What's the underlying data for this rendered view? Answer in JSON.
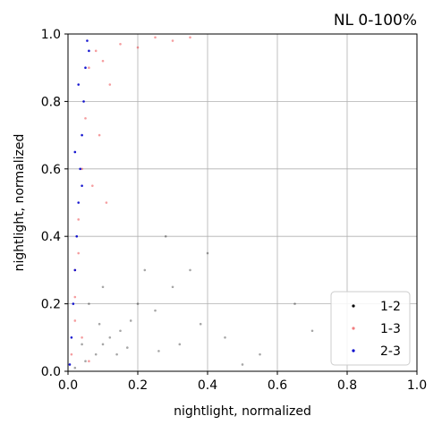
{
  "chart_data": {
    "type": "scatter",
    "title": "NL 0-100%",
    "xlabel": "nightlight, normalized",
    "ylabel": "nightlight, normalized",
    "xlim": [
      0.0,
      1.0
    ],
    "ylim": [
      0.0,
      1.0
    ],
    "xticks": [
      "0.0",
      "0.2",
      "0.4",
      "0.6",
      "0.8",
      "1.0"
    ],
    "yticks": [
      "0.0",
      "0.2",
      "0.4",
      "0.6",
      "0.8",
      "1.0"
    ],
    "grid": true,
    "legend_position": "bottom-right",
    "series": [
      {
        "name": "1-2",
        "color": "#000000",
        "points": [
          [
            0.02,
            0.01
          ],
          [
            0.05,
            0.03
          ],
          [
            0.08,
            0.05
          ],
          [
            0.1,
            0.08
          ],
          [
            0.12,
            0.1
          ],
          [
            0.15,
            0.12
          ],
          [
            0.18,
            0.15
          ],
          [
            0.2,
            0.2
          ],
          [
            0.25,
            0.18
          ],
          [
            0.3,
            0.25
          ],
          [
            0.35,
            0.3
          ],
          [
            0.4,
            0.35
          ],
          [
            0.22,
            0.3
          ],
          [
            0.28,
            0.4
          ],
          [
            0.45,
            0.1
          ],
          [
            0.55,
            0.05
          ],
          [
            0.65,
            0.2
          ],
          [
            0.7,
            0.12
          ],
          [
            0.5,
            0.02
          ],
          [
            0.06,
            0.2
          ],
          [
            0.1,
            0.25
          ],
          [
            0.14,
            0.05
          ],
          [
            0.04,
            0.08
          ],
          [
            0.17,
            0.07
          ],
          [
            0.32,
            0.08
          ],
          [
            0.38,
            0.14
          ],
          [
            0.26,
            0.06
          ],
          [
            0.09,
            0.14
          ]
        ]
      },
      {
        "name": "1-3",
        "color": "#e8262a",
        "points": [
          [
            0.01,
            0.05
          ],
          [
            0.02,
            0.15
          ],
          [
            0.02,
            0.3
          ],
          [
            0.03,
            0.45
          ],
          [
            0.04,
            0.6
          ],
          [
            0.05,
            0.75
          ],
          [
            0.06,
            0.9
          ],
          [
            0.08,
            0.95
          ],
          [
            0.1,
            0.92
          ],
          [
            0.12,
            0.85
          ],
          [
            0.15,
            0.97
          ],
          [
            0.2,
            0.96
          ],
          [
            0.25,
            0.99
          ],
          [
            0.3,
            0.98
          ],
          [
            0.35,
            0.99
          ],
          [
            0.03,
            0.35
          ],
          [
            0.07,
            0.55
          ],
          [
            0.09,
            0.7
          ],
          [
            0.11,
            0.5
          ],
          [
            0.02,
            0.22
          ],
          [
            0.04,
            0.1
          ],
          [
            0.06,
            0.03
          ]
        ]
      },
      {
        "name": "2-3",
        "color": "#0000cc",
        "points": [
          [
            0.005,
            0.02
          ],
          [
            0.01,
            0.1
          ],
          [
            0.015,
            0.2
          ],
          [
            0.02,
            0.3
          ],
          [
            0.025,
            0.4
          ],
          [
            0.03,
            0.5
          ],
          [
            0.035,
            0.6
          ],
          [
            0.04,
            0.7
          ],
          [
            0.045,
            0.8
          ],
          [
            0.05,
            0.9
          ],
          [
            0.055,
            0.98
          ],
          [
            0.06,
            0.95
          ],
          [
            0.02,
            0.65
          ],
          [
            0.03,
            0.85
          ],
          [
            0.04,
            0.55
          ]
        ]
      }
    ]
  }
}
